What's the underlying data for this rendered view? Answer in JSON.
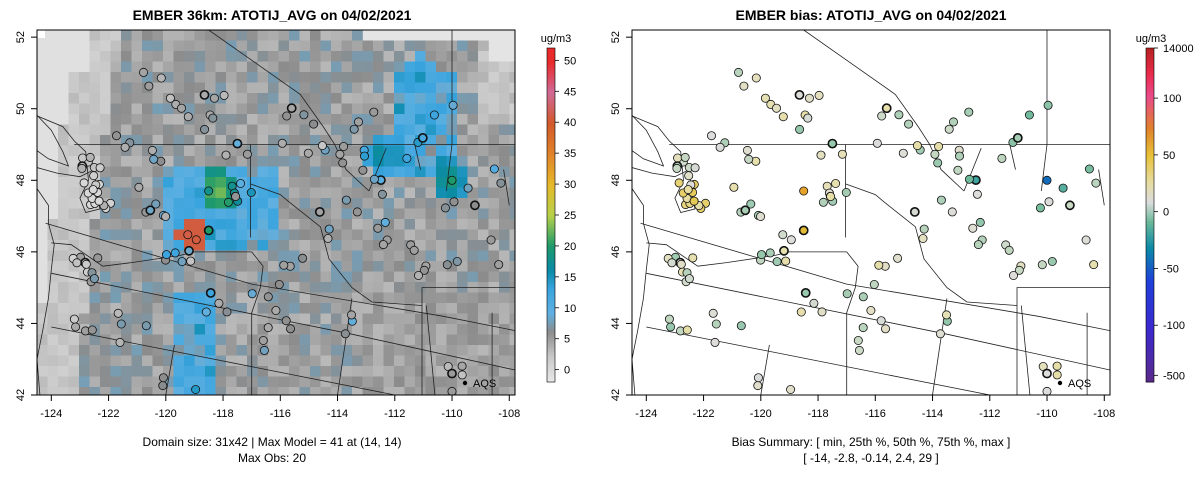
{
  "chart_data": [
    {
      "type": "heatmap",
      "title": "EMBER 36km: ATOTIJ_AVG on 04/02/2021",
      "unit": "ug/m3",
      "xlim": [
        -124.5,
        -107.8
      ],
      "ylim": [
        42,
        52.2
      ],
      "xticks": [
        "-124",
        "-122",
        "-120",
        "-118",
        "-116",
        "-114",
        "-112",
        "-110",
        "-108"
      ],
      "yticks": [
        "42",
        "44",
        "46",
        "48",
        "50",
        "52"
      ],
      "colorbar": {
        "ticks": [
          "0",
          "5",
          "10",
          "15",
          "20",
          "25",
          "30",
          "35",
          "40",
          "45",
          "50"
        ],
        "range": [
          -2,
          52
        ],
        "colors": [
          "#e3e3e3",
          "#888888",
          "#56b4e9",
          "#0a8aa8",
          "#1f9a55",
          "#d7d32c",
          "#e69a2a",
          "#d2592a",
          "#cc6f9a",
          "#e92a2a"
        ]
      },
      "legend": "AQS",
      "footer": [
        "Domain size: 31x42 | Max Model = 41 at (14, 14)",
        "Max Obs: 20"
      ],
      "max_model": {
        "value": 41,
        "lon": -119.1,
        "lat": 46.5
      },
      "hotspots": [
        {
          "lon": -118.2,
          "lat": 47.7,
          "value": 24
        },
        {
          "lon": -110.1,
          "lat": 48.0,
          "value": 20
        },
        {
          "lon": -112.5,
          "lat": 48.7,
          "value": 18
        },
        {
          "lon": -111.2,
          "lat": 50.9,
          "value": 16
        }
      ]
    },
    {
      "type": "scatter",
      "title": "EMBER bias: ATOTIJ_AVG on 04/02/2021",
      "unit": "ug/m3",
      "xlim": [
        -124.5,
        -107.8
      ],
      "ylim": [
        42,
        52.2
      ],
      "xticks": [
        "-124",
        "-122",
        "-120",
        "-118",
        "-116",
        "-114",
        "-112",
        "-110",
        "-108"
      ],
      "yticks": [
        "42",
        "44",
        "46",
        "48",
        "50",
        "52"
      ],
      "colorbar": {
        "ticks": [
          "-500",
          "-100",
          "-50",
          "0",
          "50",
          "100",
          "14000"
        ],
        "colors": [
          "#5a2a8a",
          "#1f3fd8",
          "#0a8aa8",
          "#dcdcdc",
          "#e69a2a",
          "#e94a8a",
          "#b82222"
        ]
      },
      "legend": "AQS",
      "footer": [
        "Bias Summary: [ min, 25th %, 50th %, 75th %, max ]",
        "[ -14,   -2.8,   -0.14,   2.4,   29 ]"
      ],
      "bias_summary": {
        "min": -14,
        "p25": -2.8,
        "p50": -0.14,
        "p75": 2.4,
        "max": 29
      }
    }
  ]
}
